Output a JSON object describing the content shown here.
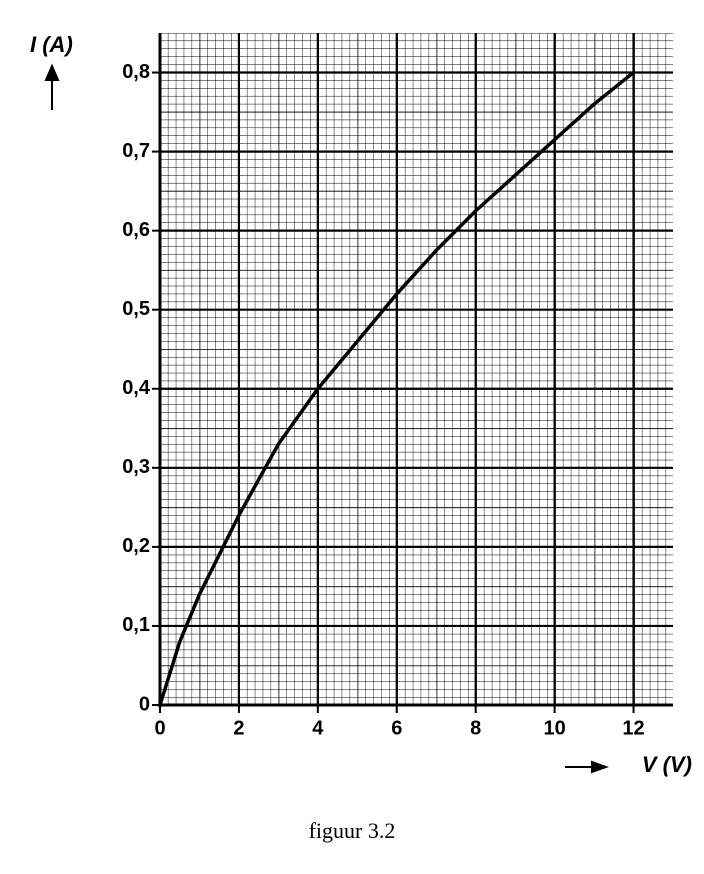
{
  "chart_data": {
    "type": "line",
    "y_label": "I (A)",
    "x_label": "V (V)",
    "caption": "figuur 3.2",
    "x": [
      0,
      0.5,
      1,
      2,
      3,
      4,
      5,
      6,
      7,
      8,
      9,
      10,
      11,
      12
    ],
    "values": [
      0,
      0.08,
      0.14,
      0.24,
      0.33,
      0.4,
      0.46,
      0.52,
      0.575,
      0.625,
      0.67,
      0.715,
      0.76,
      0.8
    ],
    "color": "#000000",
    "xlim": [
      0,
      13
    ],
    "xticks": [
      0,
      2,
      4,
      6,
      8,
      10,
      12
    ],
    "ylim": [
      0,
      0.85
    ],
    "yticks": [
      0,
      {
        "value": 0.1,
        "label": "0,1"
      },
      {
        "value": 0.2,
        "label": "0,2"
      },
      {
        "value": 0.3,
        "label": "0,3"
      },
      {
        "value": 0.4,
        "label": "0,4"
      },
      {
        "value": 0.5,
        "label": "0,5"
      },
      {
        "value": 0.6,
        "label": "0,6"
      },
      {
        "value": 0.7,
        "label": "0,7"
      },
      {
        "value": 0.8,
        "label": "0,8"
      }
    ],
    "grid": true
  }
}
